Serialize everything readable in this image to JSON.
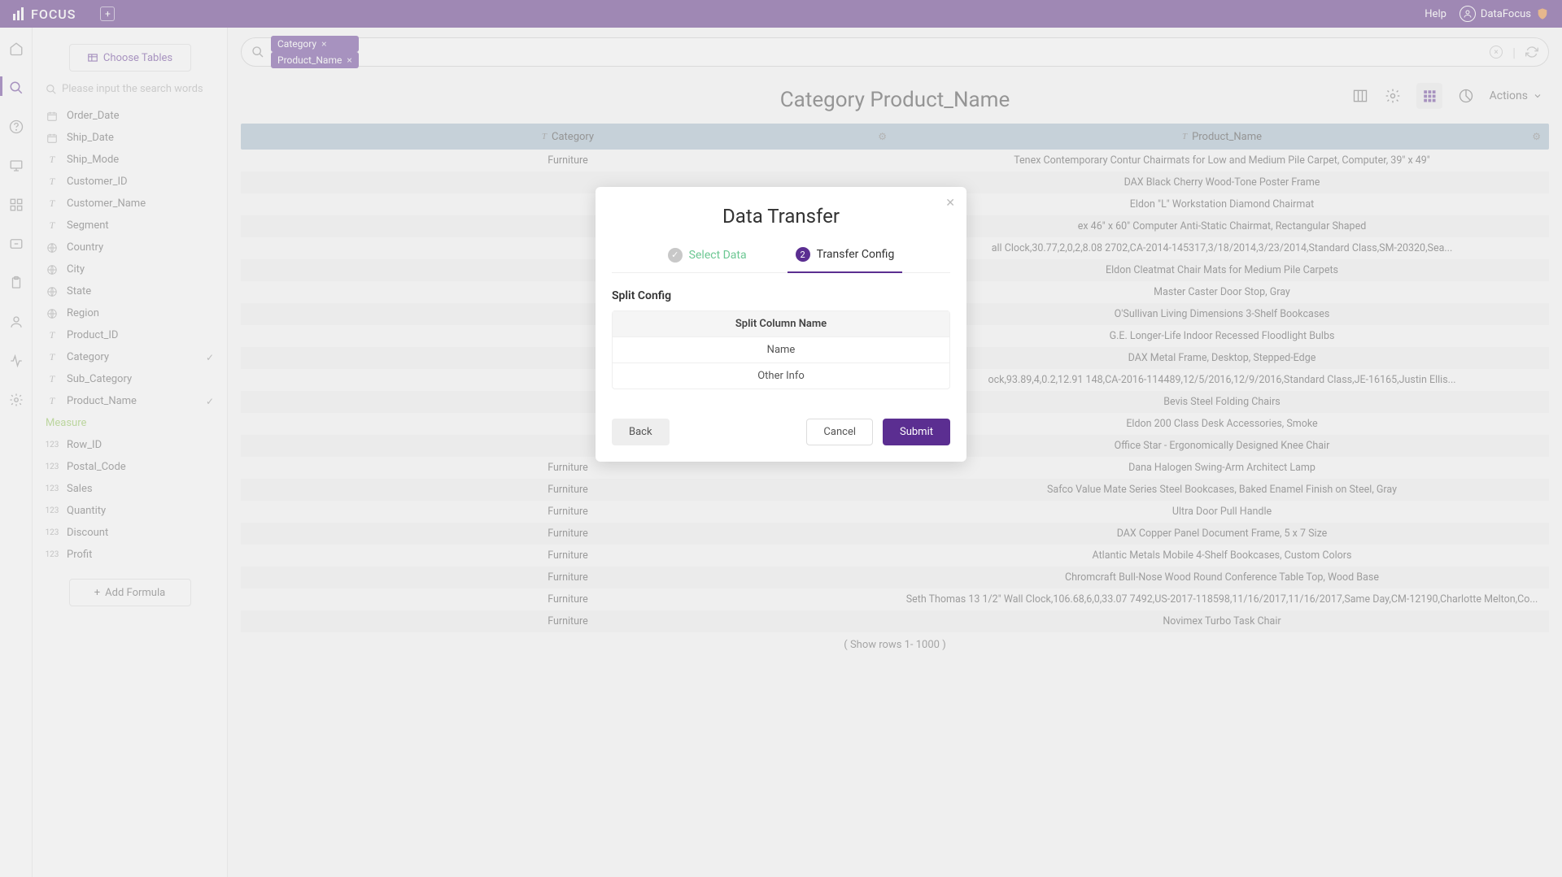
{
  "header": {
    "app_name": "FOCUS",
    "help_label": "Help",
    "user_name": "DataFocus"
  },
  "sidebar": {
    "choose_tables_label": "Choose Tables",
    "search_placeholder": "Please input the search words",
    "fields": [
      {
        "icon": "date",
        "label": "Order_Date",
        "checked": false
      },
      {
        "icon": "date",
        "label": "Ship_Date",
        "checked": false
      },
      {
        "icon": "text",
        "label": "Ship_Mode",
        "checked": false
      },
      {
        "icon": "text",
        "label": "Customer_ID",
        "checked": false
      },
      {
        "icon": "text",
        "label": "Customer_Name",
        "checked": false
      },
      {
        "icon": "text",
        "label": "Segment",
        "checked": false
      },
      {
        "icon": "geo",
        "label": "Country",
        "checked": false
      },
      {
        "icon": "geo",
        "label": "City",
        "checked": false
      },
      {
        "icon": "geo",
        "label": "State",
        "checked": false
      },
      {
        "icon": "geo",
        "label": "Region",
        "checked": false
      },
      {
        "icon": "text",
        "label": "Product_ID",
        "checked": false
      },
      {
        "icon": "text",
        "label": "Category",
        "checked": true
      },
      {
        "icon": "text",
        "label": "Sub_Category",
        "checked": false
      },
      {
        "icon": "text",
        "label": "Product_Name",
        "checked": true
      }
    ],
    "measure_label": "Measure",
    "measures": [
      {
        "label": "Row_ID"
      },
      {
        "label": "Postal_Code"
      },
      {
        "label": "Sales"
      },
      {
        "label": "Quantity"
      },
      {
        "label": "Discount"
      },
      {
        "label": "Profit"
      }
    ],
    "add_formula_label": "Add Formula"
  },
  "query": {
    "pills": [
      "Category",
      "Product_Name"
    ]
  },
  "toolbar": {
    "actions_label": "Actions"
  },
  "page_title": "Category Product_Name",
  "table": {
    "columns": [
      "Category",
      "Product_Name"
    ],
    "rows": [
      [
        "Furniture",
        "Tenex Contemporary Contur Chairmats for Low and Medium Pile Carpet, Computer, 39\" x 49\""
      ],
      [
        "",
        "DAX Black Cherry Wood-Tone Poster Frame"
      ],
      [
        "",
        "Eldon \"L\" Workstation Diamond Chairmat"
      ],
      [
        "",
        "ex 46\" x 60\" Computer Anti-Static Chairmat, Rectangular Shaped"
      ],
      [
        "",
        "all Clock,30.77,2,0,2,8.08  2702,CA-2014-145317,3/18/2014,3/23/2014,Standard Class,SM-20320,Sea..."
      ],
      [
        "",
        "Eldon Cleatmat Chair Mats for Medium Pile Carpets"
      ],
      [
        "",
        "Master Caster Door Stop, Gray"
      ],
      [
        "",
        "O'Sullivan Living Dimensions 3-Shelf Bookcases"
      ],
      [
        "",
        "G.E. Longer-Life Indoor Recessed Floodlight Bulbs"
      ],
      [
        "",
        "DAX Metal Frame, Desktop, Stepped-Edge"
      ],
      [
        "",
        "ock,93.89,4,0.2,12.91  148,CA-2016-114489,12/5/2016,12/9/2016,Standard Class,JE-16165,Justin Ellis..."
      ],
      [
        "",
        "Bevis Steel Folding Chairs"
      ],
      [
        "",
        "Eldon 200 Class Desk Accessories, Smoke"
      ],
      [
        "",
        "Office Star - Ergonomically Designed Knee Chair"
      ],
      [
        "Furniture",
        "Dana Halogen Swing-Arm Architect Lamp"
      ],
      [
        "Furniture",
        "Safco Value Mate Series Steel Bookcases, Baked Enamel Finish on Steel, Gray"
      ],
      [
        "Furniture",
        "Ultra Door Pull Handle"
      ],
      [
        "Furniture",
        "DAX Copper Panel Document Frame, 5 x 7 Size"
      ],
      [
        "Furniture",
        "Atlantic Metals Mobile 4-Shelf Bookcases, Custom Colors"
      ],
      [
        "Furniture",
        "Chromcraft Bull-Nose Wood Round Conference Table Top, Wood Base"
      ],
      [
        "Furniture",
        "Seth Thomas 13 1/2\" Wall Clock,106.68,6,0,33.07  7492,US-2017-118598,11/16/2017,11/16/2017,Same Day,CM-12190,Charlotte Melton,Co..."
      ],
      [
        "Furniture",
        "Novimex Turbo Task Chair"
      ]
    ],
    "footer_note": "( Show rows 1- 1000 )"
  },
  "modal": {
    "title": "Data Transfer",
    "step1_label": "Select Data",
    "step2_label": "Transfer Config",
    "section_title": "Split Config",
    "split_header": "Split Column Name",
    "split_rows": [
      "Name",
      "Other Info"
    ],
    "back_label": "Back",
    "cancel_label": "Cancel",
    "submit_label": "Submit"
  }
}
